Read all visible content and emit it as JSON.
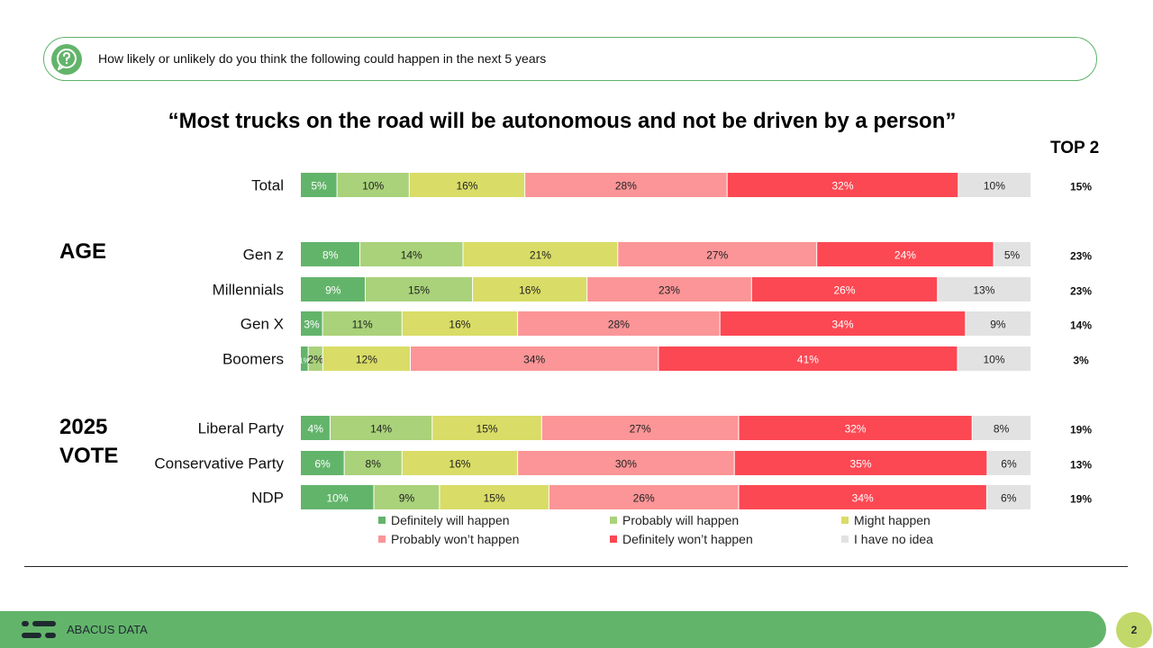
{
  "question": "How likely or unlikely do you think the following could happen in the next 5 years",
  "top2_header": "TOP 2",
  "sections": {
    "age": "AGE",
    "vote_line1": "2025",
    "vote_line2": "VOTE"
  },
  "footer": {
    "brand": "ABACUS DATA",
    "page": "2"
  },
  "colors": {
    "accent_green": "#63b46b",
    "page_badge": "#c3d86a"
  },
  "chart_data": {
    "type": "bar",
    "orientation": "horizontal-stacked-100",
    "title": "“Most trucks on the road will be autonomous and not be driven by a person”",
    "categories": [
      "Total",
      "Gen z",
      "Millennials",
      "Gen X",
      "Boomers",
      "Liberal Party",
      "Conservative Party",
      "NDP"
    ],
    "series": [
      {
        "name": "Definitely will happen",
        "color": "#63b46b",
        "values": [
          5,
          8,
          9,
          3,
          1,
          4,
          6,
          10
        ]
      },
      {
        "name": "Probably will happen",
        "color": "#a9d27a",
        "values": [
          10,
          14,
          15,
          11,
          2,
          14,
          8,
          9
        ]
      },
      {
        "name": "Might happen",
        "color": "#d9dc66",
        "values": [
          16,
          21,
          16,
          16,
          12,
          15,
          16,
          15
        ]
      },
      {
        "name": "Probably won’t happen",
        "color": "#fb9597",
        "values": [
          28,
          27,
          23,
          28,
          34,
          27,
          30,
          26
        ]
      },
      {
        "name": "Definitely won’t happen",
        "color": "#fc4853",
        "values": [
          32,
          24,
          26,
          34,
          41,
          32,
          35,
          34
        ]
      },
      {
        "name": "I have no idea",
        "color": "#e2e2e2",
        "values": [
          10,
          5,
          13,
          9,
          10,
          8,
          6,
          6
        ]
      }
    ],
    "labels": [
      [
        "5%",
        "10%",
        "16%",
        "28%",
        "32%",
        "10%"
      ],
      [
        "8%",
        "14%",
        "21%",
        "27%",
        "24%",
        "5%"
      ],
      [
        "9%",
        "15%",
        "16%",
        "23%",
        "26%",
        "13%"
      ],
      [
        "3%",
        "11%",
        "16%",
        "28%",
        "34%",
        "9%"
      ],
      [
        "1%",
        "2%",
        "12%",
        "34%",
        "41%",
        "10%"
      ],
      [
        "4%",
        "14%",
        "15%",
        "27%",
        "32%",
        "8%"
      ],
      [
        "6%",
        "8%",
        "16%",
        "30%",
        "35%",
        "6%"
      ],
      [
        "10%",
        "9%",
        "15%",
        "26%",
        "34%",
        "6%"
      ]
    ],
    "top2": [
      "15%",
      "23%",
      "23%",
      "14%",
      "3%",
      "19%",
      "13%",
      "19%"
    ],
    "legend": "bottom"
  }
}
